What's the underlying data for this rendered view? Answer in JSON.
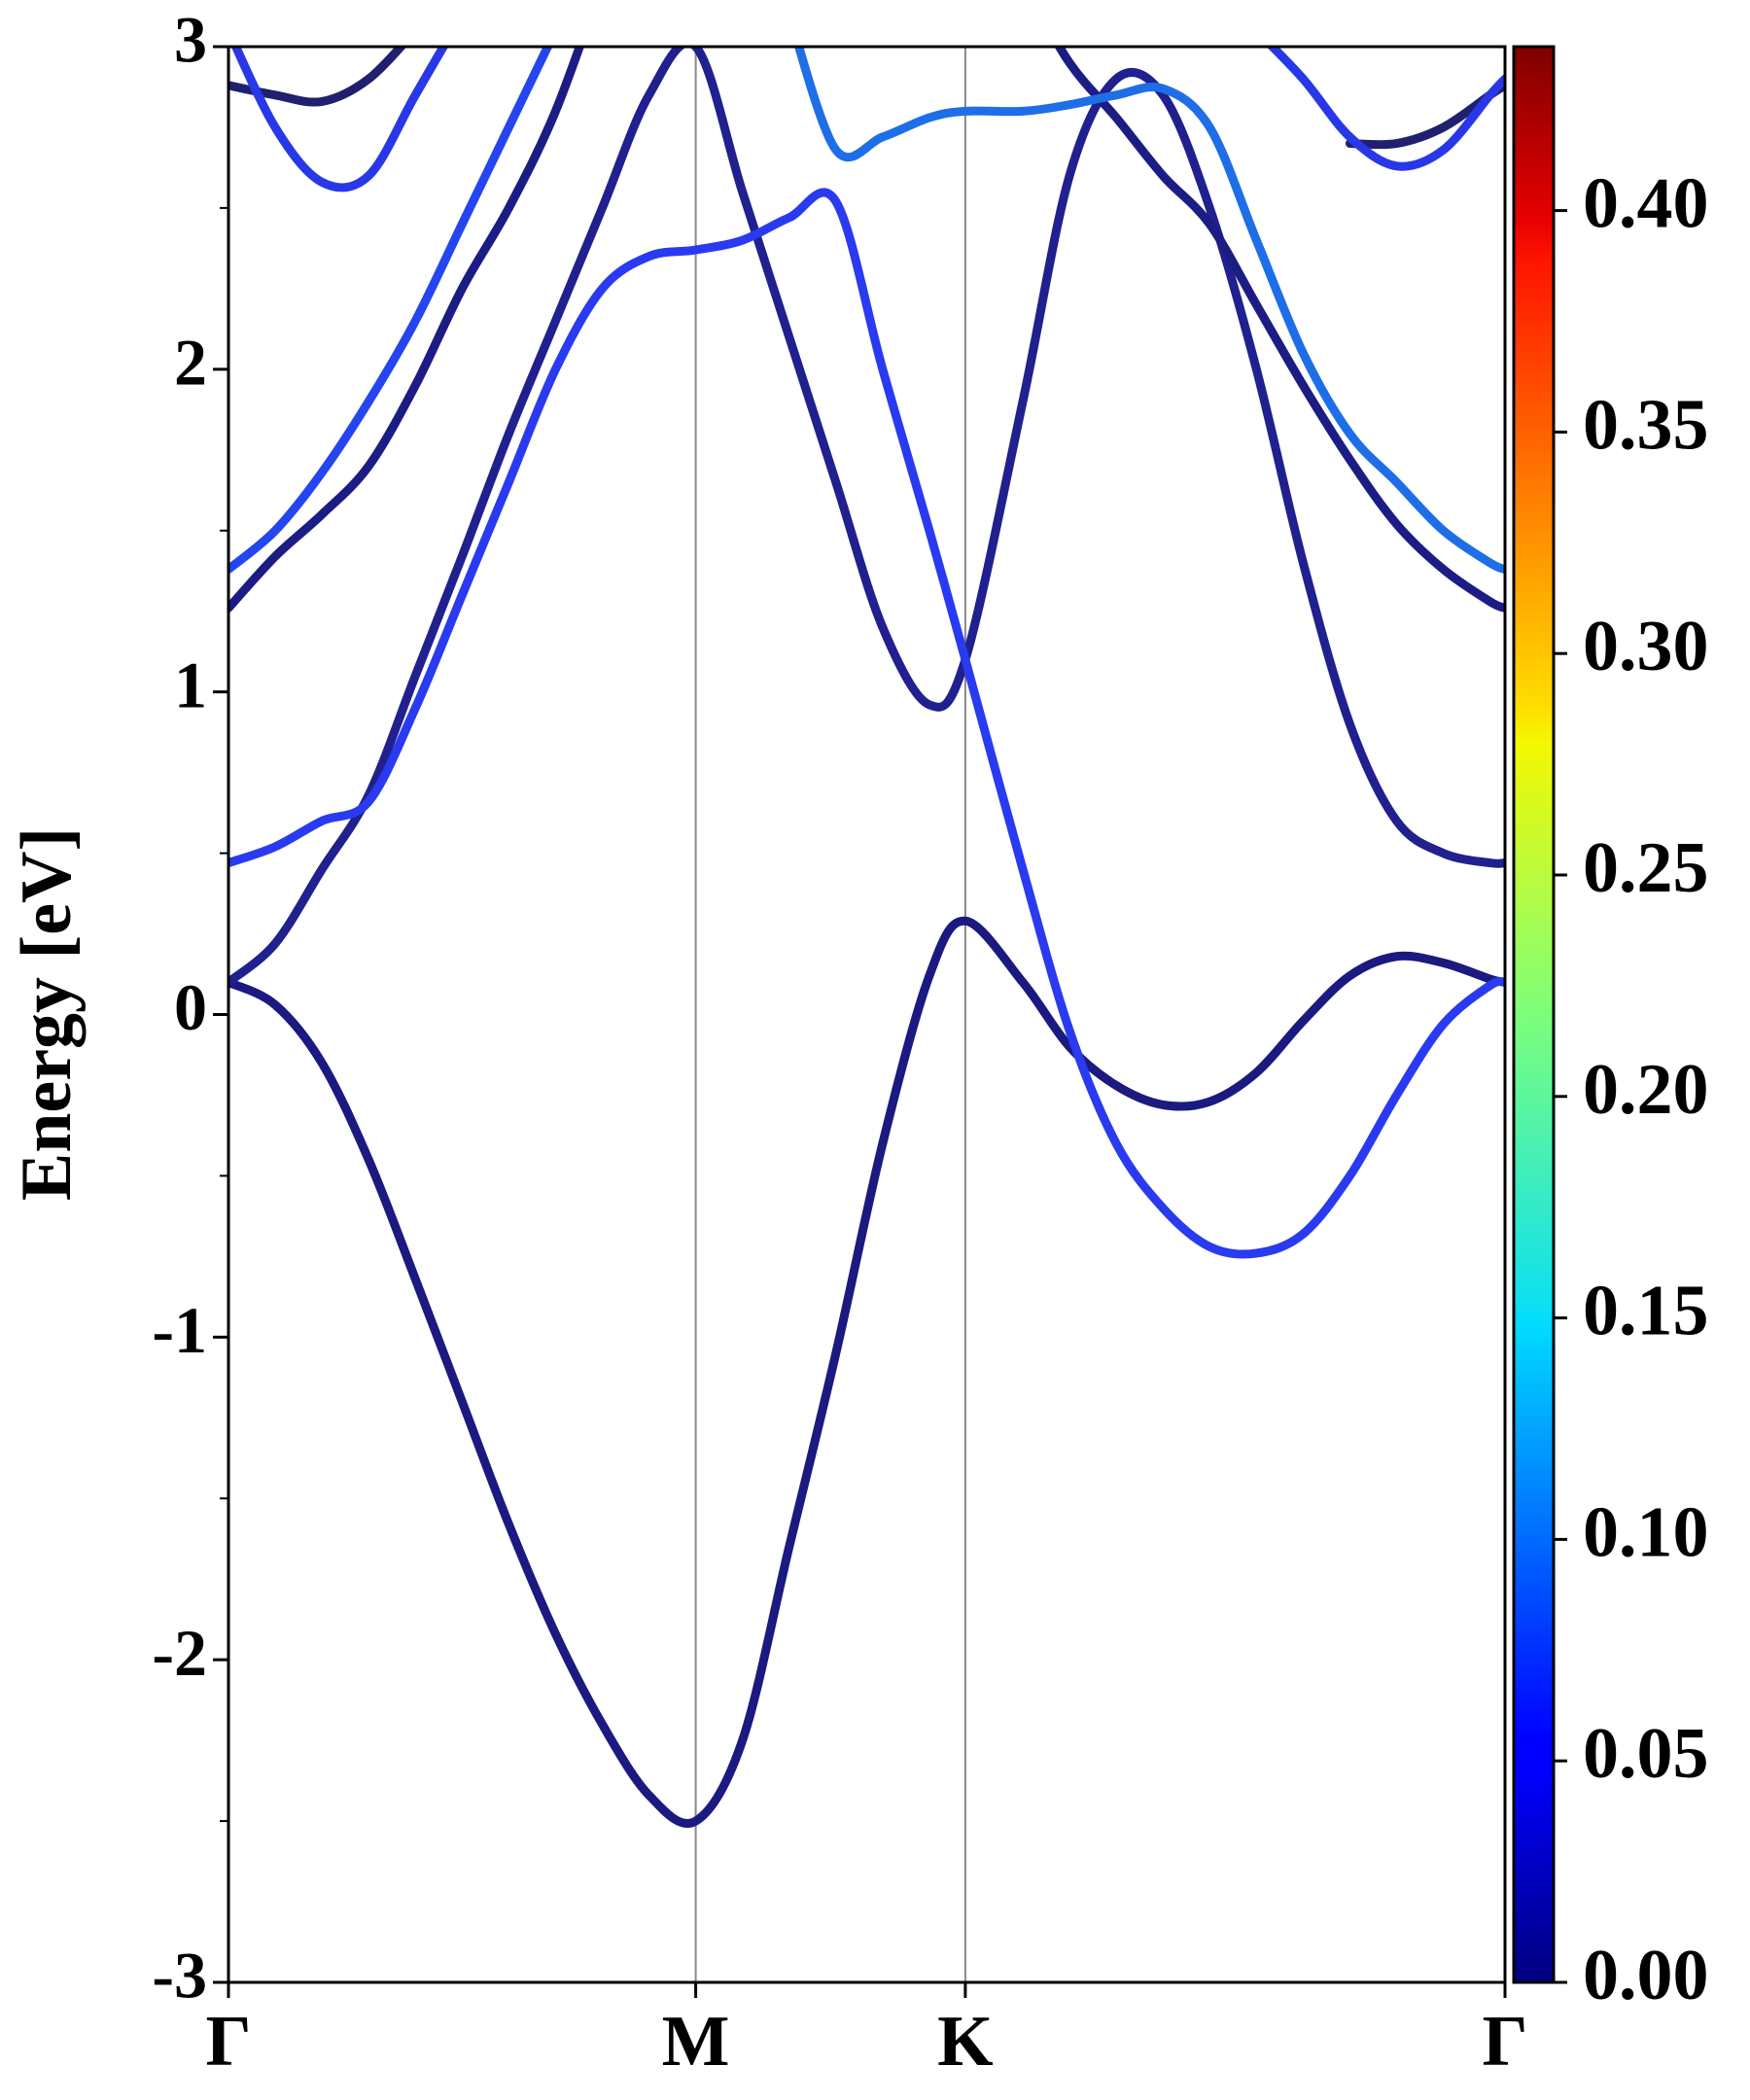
{
  "chart_data": {
    "type": "line",
    "ylabel": "Energy [eV]",
    "x": [
      0,
      0.1,
      0.2,
      0.3,
      0.4,
      0.5,
      0.6,
      0.7,
      0.8,
      0.9,
      1.0,
      1.1,
      1.2,
      1.3,
      1.4,
      1.5,
      1.577,
      1.7,
      1.8,
      1.9,
      2.0,
      2.1,
      2.2,
      2.3,
      2.4,
      2.5,
      2.6,
      2.7,
      2.732
    ],
    "series": [
      {
        "color": "#1a1a80",
        "values": [
          0.1,
          0.03,
          -0.15,
          -0.45,
          -0.82,
          -1.2,
          -1.58,
          -1.92,
          -2.2,
          -2.42,
          -2.5,
          -2.25,
          -1.65,
          -1.05,
          -0.4,
          0.12,
          0.29,
          0.1,
          -0.1,
          -0.22,
          -0.28,
          -0.27,
          -0.18,
          -0.02,
          0.12,
          0.18,
          0.16,
          0.11,
          0.1
        ]
      },
      {
        "color": "#20208f",
        "values": [
          0.1,
          0.22,
          0.45,
          0.68,
          1.05,
          1.42,
          1.8,
          2.15,
          2.5,
          2.85,
          3.0,
          2.55,
          2.1,
          1.65,
          1.2,
          0.96,
          1.1,
          1.9,
          2.6,
          2.9,
          2.85,
          2.5,
          2.0,
          1.4,
          0.9,
          0.6,
          0.5,
          0.47,
          0.47
        ]
      },
      {
        "color": "#2a3af0",
        "values": [
          0.47,
          0.52,
          0.6,
          0.66,
          0.95,
          1.3,
          1.65,
          2.0,
          2.25,
          2.35,
          2.37,
          2.4,
          2.47,
          2.52,
          2.0,
          1.5,
          1.1,
          0.45,
          -0.05,
          -0.4,
          -0.6,
          -0.72,
          -0.74,
          -0.68,
          -0.5,
          -0.25,
          -0.03,
          0.09,
          0.1
        ]
      },
      {
        "color": "#1c1c85",
        "values": [
          1.26,
          1.42,
          1.55,
          1.7,
          1.95,
          2.25,
          2.5,
          2.8,
          3.2,
          null,
          null,
          null,
          null,
          null,
          null,
          null,
          null,
          3.2,
          2.95,
          2.78,
          2.6,
          2.45,
          2.2,
          1.95,
          1.72,
          1.52,
          1.38,
          1.28,
          1.26
        ]
      },
      {
        "color": "#2545f0",
        "values": [
          1.38,
          1.5,
          1.68,
          1.9,
          2.15,
          2.45,
          2.75,
          3.05,
          null,
          null,
          null,
          null,
          null,
          null,
          null,
          null,
          null,
          null,
          null,
          null,
          null,
          null,
          null,
          null,
          null,
          null,
          null,
          null,
          null
        ]
      },
      {
        "color": "#1e6ee8",
        "values": [
          null,
          null,
          null,
          null,
          null,
          null,
          null,
          null,
          null,
          null,
          null,
          null,
          3.1,
          2.68,
          2.72,
          2.78,
          2.8,
          2.8,
          2.82,
          2.85,
          2.87,
          2.75,
          2.4,
          2.05,
          1.8,
          1.65,
          1.5,
          1.4,
          1.38
        ]
      },
      {
        "color": "#202070",
        "values": [
          2.88,
          2.85,
          2.83,
          2.9,
          3.05,
          null,
          null,
          null,
          null,
          null,
          null,
          null,
          null,
          null,
          null,
          null,
          null,
          null,
          null,
          null,
          null,
          null,
          null,
          null,
          2.7,
          2.7,
          2.75,
          2.85,
          2.88
        ]
      },
      {
        "color": "#2838e8",
        "values": [
          3.05,
          2.75,
          2.58,
          2.6,
          2.85,
          3.1,
          null,
          null,
          null,
          null,
          null,
          null,
          null,
          null,
          null,
          null,
          null,
          null,
          null,
          null,
          null,
          null,
          3.05,
          2.9,
          2.72,
          2.63,
          2.68,
          2.85,
          2.9
        ]
      }
    ],
    "xlim": [
      0,
      2.732
    ],
    "xticks": [
      {
        "value": 0,
        "label": "Γ"
      },
      {
        "value": 1.0,
        "label": "M"
      },
      {
        "value": 1.577,
        "label": "K"
      },
      {
        "value": 2.732,
        "label": "Γ"
      }
    ],
    "ylim": [
      -3,
      3
    ],
    "yticks": [
      -3,
      -2,
      -1,
      0,
      1,
      2,
      3
    ],
    "yminor_ticks": [
      -2.5,
      -1.5,
      -0.5,
      0.5,
      1.5,
      2.5
    ],
    "colormap": "jet",
    "colorbar_lim": [
      0,
      0.437
    ],
    "colorbar_ticks": [
      {
        "value": 0,
        "label": "0.00"
      },
      {
        "value": 0.05,
        "label": "0.05"
      },
      {
        "value": 0.1,
        "label": "0.10"
      },
      {
        "value": 0.15,
        "label": "0.15"
      },
      {
        "value": 0.2,
        "label": "0.20"
      },
      {
        "value": 0.25,
        "label": "0.25"
      },
      {
        "value": 0.3,
        "label": "0.30"
      },
      {
        "value": 0.35,
        "label": "0.35"
      },
      {
        "value": 0.4,
        "label": "0.40"
      }
    ]
  }
}
